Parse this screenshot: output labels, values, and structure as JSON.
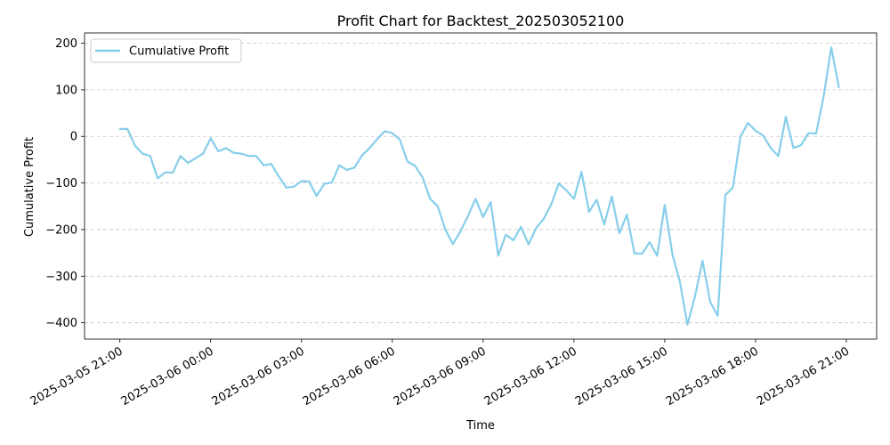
{
  "chart_data": {
    "type": "line",
    "title": "Profit Chart for Backtest_202503052100",
    "xlabel": "Time",
    "ylabel": "Cumulative Profit",
    "grid": "horizontal dashed",
    "legend_placement": "top-left",
    "ylim": [
      -435,
      222
    ],
    "xlim": [
      "2025-03-05 19:50",
      "2025-03-06 22:00"
    ],
    "y_ticks": [
      {
        "value": 200,
        "label": "200"
      },
      {
        "value": 100,
        "label": "100"
      },
      {
        "value": 0,
        "label": "0"
      },
      {
        "value": -100,
        "label": "−100"
      },
      {
        "value": -200,
        "label": "−200"
      },
      {
        "value": -300,
        "label": "−300"
      },
      {
        "value": -400,
        "label": "−400"
      }
    ],
    "x_ticks": [
      {
        "value": "2025-03-05 21:00",
        "label": "2025-03-05 21:00"
      },
      {
        "value": "2025-03-06 00:00",
        "label": "2025-03-06 00:00"
      },
      {
        "value": "2025-03-06 03:00",
        "label": "2025-03-06 03:00"
      },
      {
        "value": "2025-03-06 06:00",
        "label": "2025-03-06 06:00"
      },
      {
        "value": "2025-03-06 09:00",
        "label": "2025-03-06 09:00"
      },
      {
        "value": "2025-03-06 12:00",
        "label": "2025-03-06 12:00"
      },
      {
        "value": "2025-03-06 15:00",
        "label": "2025-03-06 15:00"
      },
      {
        "value": "2025-03-06 18:00",
        "label": "2025-03-06 18:00"
      },
      {
        "value": "2025-03-06 21:00",
        "label": "2025-03-06 21:00"
      }
    ],
    "series": [
      {
        "name": "Cumulative Profit",
        "color": "#87CEEB",
        "x": [
          "2025-03-05 21:00",
          "2025-03-05 21:15",
          "2025-03-05 21:30",
          "2025-03-05 21:45",
          "2025-03-05 22:00",
          "2025-03-05 22:15",
          "2025-03-05 22:30",
          "2025-03-05 22:45",
          "2025-03-05 23:00",
          "2025-03-05 23:15",
          "2025-03-05 23:30",
          "2025-03-05 23:45",
          "2025-03-06 00:00",
          "2025-03-06 00:15",
          "2025-03-06 00:30",
          "2025-03-06 00:45",
          "2025-03-06 01:00",
          "2025-03-06 01:15",
          "2025-03-06 01:30",
          "2025-03-06 01:45",
          "2025-03-06 02:00",
          "2025-03-06 02:15",
          "2025-03-06 02:30",
          "2025-03-06 02:45",
          "2025-03-06 03:00",
          "2025-03-06 03:15",
          "2025-03-06 03:30",
          "2025-03-06 03:45",
          "2025-03-06 04:00",
          "2025-03-06 04:15",
          "2025-03-06 04:30",
          "2025-03-06 04:45",
          "2025-03-06 05:00",
          "2025-03-06 05:15",
          "2025-03-06 05:30",
          "2025-03-06 05:45",
          "2025-03-06 06:00",
          "2025-03-06 06:15",
          "2025-03-06 06:30",
          "2025-03-06 06:45",
          "2025-03-06 07:00",
          "2025-03-06 07:15",
          "2025-03-06 07:30",
          "2025-03-06 07:45",
          "2025-03-06 08:00",
          "2025-03-06 08:15",
          "2025-03-06 08:30",
          "2025-03-06 08:45",
          "2025-03-06 09:00",
          "2025-03-06 09:15",
          "2025-03-06 09:30",
          "2025-03-06 09:45",
          "2025-03-06 10:00",
          "2025-03-06 10:15",
          "2025-03-06 10:30",
          "2025-03-06 10:45",
          "2025-03-06 11:00",
          "2025-03-06 11:15",
          "2025-03-06 11:30",
          "2025-03-06 11:45",
          "2025-03-06 12:00",
          "2025-03-06 12:15",
          "2025-03-06 12:30",
          "2025-03-06 12:45",
          "2025-03-06 13:00",
          "2025-03-06 13:15",
          "2025-03-06 13:30",
          "2025-03-06 13:45",
          "2025-03-06 14:00",
          "2025-03-06 14:15",
          "2025-03-06 14:30",
          "2025-03-06 14:45",
          "2025-03-06 15:00",
          "2025-03-06 15:15",
          "2025-03-06 15:30",
          "2025-03-06 15:45",
          "2025-03-06 16:00",
          "2025-03-06 16:15",
          "2025-03-06 16:30",
          "2025-03-06 16:45",
          "2025-03-06 17:00",
          "2025-03-06 17:15",
          "2025-03-06 17:30",
          "2025-03-06 17:45",
          "2025-03-06 18:00",
          "2025-03-06 18:15",
          "2025-03-06 18:30",
          "2025-03-06 18:45",
          "2025-03-06 19:00",
          "2025-03-06 19:15",
          "2025-03-06 19:30",
          "2025-03-06 19:45",
          "2025-03-06 20:00",
          "2025-03-06 20:15",
          "2025-03-06 20:30",
          "2025-03-06 20:45"
        ],
        "values": [
          16,
          16,
          -20,
          -37,
          -42,
          -90,
          -77,
          -78,
          -42,
          -57,
          -47,
          -37,
          -4,
          -32,
          -25,
          -35,
          -37,
          -42,
          -42,
          -62,
          -59,
          -86,
          -110,
          -108,
          -96,
          -97,
          -128,
          -102,
          -99,
          -62,
          -72,
          -67,
          -41,
          -25,
          -6,
          11,
          7,
          -7,
          -54,
          -63,
          -88,
          -134,
          -150,
          -200,
          -231,
          -204,
          -171,
          -134,
          -173,
          -141,
          -256,
          -211,
          -223,
          -194,
          -232,
          -197,
          -177,
          -146,
          -101,
          -116,
          -134,
          -76,
          -162,
          -136,
          -189,
          -129,
          -208,
          -168,
          -251,
          -252,
          -227,
          -256,
          -147,
          -252,
          -312,
          -404,
          -343,
          -267,
          -355,
          -385,
          -126,
          -110,
          -1,
          29,
          12,
          2,
          -25,
          -42,
          42,
          -25,
          -19,
          7,
          6,
          86,
          191,
          106
        ]
      }
    ]
  }
}
